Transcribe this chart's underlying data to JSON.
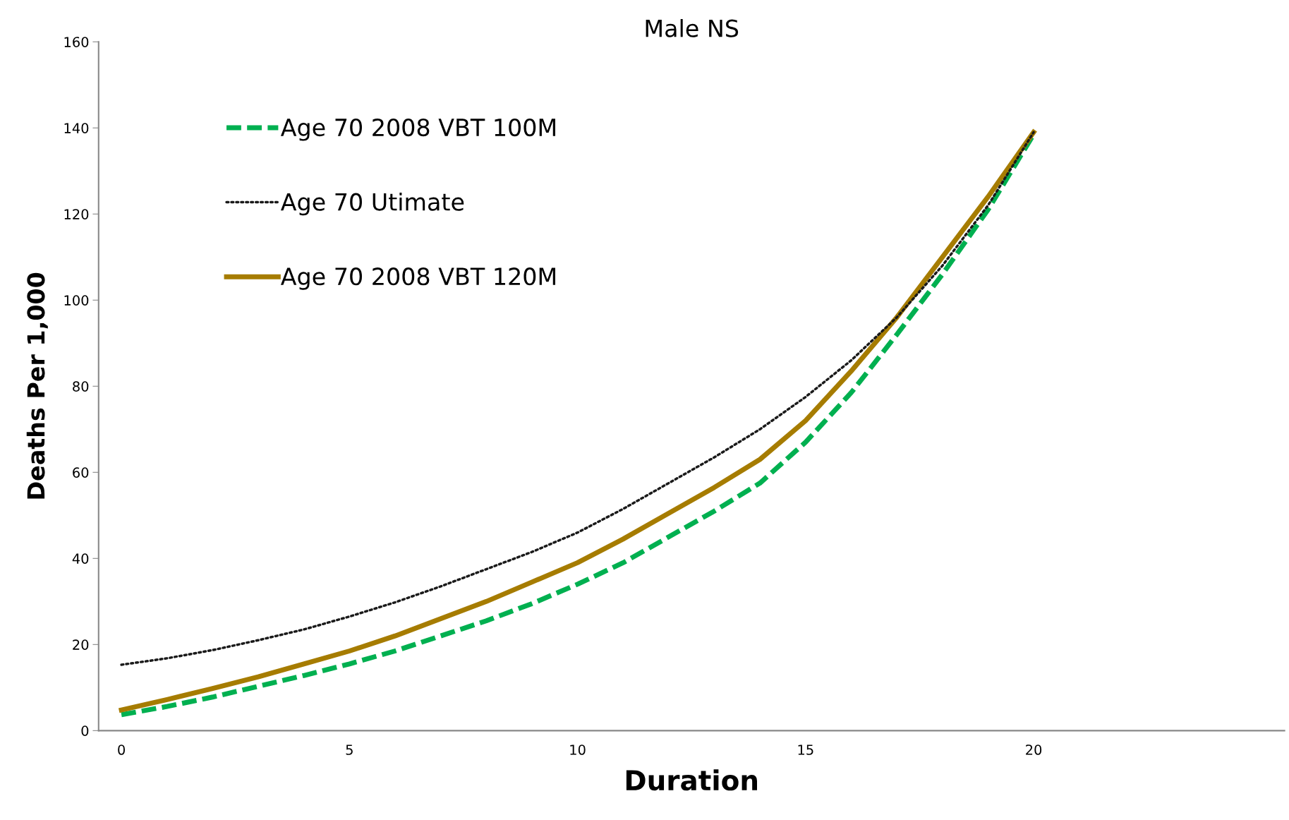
{
  "chart_data": {
    "type": "line",
    "title": "Male NS",
    "xlabel": "Duration",
    "ylabel": "Deaths Per 1,000",
    "x": [
      0,
      1,
      2,
      3,
      4,
      5,
      6,
      7,
      8,
      9,
      10,
      11,
      12,
      13,
      14,
      15,
      16,
      17,
      18,
      19,
      20
    ],
    "series": [
      {
        "name": "Age 70 2008 VBT 100M",
        "color": "#00b050",
        "line_style": "dashed",
        "values": [
          3.7,
          5.6,
          7.8,
          10.3,
          12.8,
          15.5,
          18.5,
          22,
          25.5,
          29.5,
          34,
          39,
          45,
          51,
          57.5,
          67,
          78.5,
          92,
          106,
          121,
          138.5
        ]
      },
      {
        "name": "Age 70 Utimate",
        "color": "#1a1a1a",
        "line_style": "dotted",
        "values": [
          15.3,
          16.8,
          18.7,
          21,
          23.5,
          26.5,
          29.8,
          33.5,
          37.5,
          41.5,
          46,
          51.5,
          57.5,
          63.5,
          70,
          77.5,
          86,
          96,
          108,
          122,
          139
        ]
      },
      {
        "name": "Age 70 2008 VBT 120M",
        "color": "#a67c00",
        "line_style": "solid",
        "values": [
          4.8,
          7.2,
          9.8,
          12.5,
          15.5,
          18.5,
          22,
          26,
          30,
          34.5,
          39,
          44.5,
          50.5,
          56.5,
          63,
          72,
          83.5,
          96,
          110,
          124,
          139
        ]
      }
    ],
    "xlim": [
      -0.5,
      25.5
    ],
    "ylim": [
      0,
      160
    ],
    "xticks": [
      0,
      5,
      10,
      15,
      20
    ],
    "yticks": [
      0,
      20,
      40,
      60,
      80,
      100,
      120,
      140,
      160
    ],
    "grid": false,
    "legend": "top left",
    "marker": "none"
  }
}
